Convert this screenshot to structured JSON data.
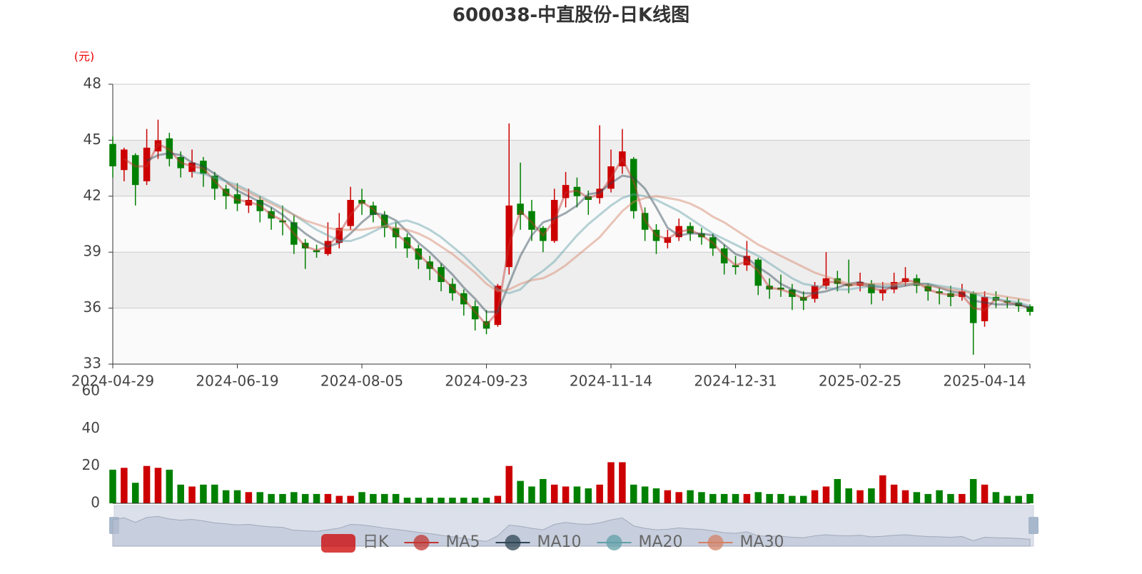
{
  "chart_data": {
    "type": "candlestick",
    "title": "600038-中直股份-日K线图",
    "y_unit": "(元)",
    "categories": [
      "2024-04-29",
      null,
      null,
      null,
      null,
      null,
      null,
      null,
      null,
      null,
      null,
      "2024-06-19",
      null,
      null,
      null,
      null,
      null,
      null,
      null,
      null,
      null,
      null,
      "2024-08-05",
      null,
      null,
      null,
      null,
      null,
      null,
      null,
      null,
      null,
      null,
      "2024-09-23",
      null,
      null,
      null,
      null,
      null,
      null,
      null,
      null,
      null,
      null,
      "2024-11-14",
      null,
      null,
      null,
      null,
      null,
      null,
      null,
      null,
      null,
      null,
      "2024-12-31",
      null,
      null,
      null,
      null,
      null,
      null,
      null,
      null,
      null,
      null,
      "2025-02-25",
      null,
      null,
      null,
      null,
      null,
      null,
      null,
      null,
      null,
      null,
      "2025-04-14",
      null,
      null,
      null,
      null
    ],
    "ylim": [
      33,
      48
    ],
    "yticks": [
      33,
      36,
      39,
      42,
      45,
      48
    ],
    "grid": true,
    "legend_position": "bottom",
    "up_color": "#cc0000",
    "down_color": "#008000",
    "series": [
      {
        "name": "日K",
        "type": "candlestick",
        "color": "#c23531",
        "values": [
          [
            44.8,
            43.6,
            43.0,
            45.2
          ],
          [
            43.4,
            44.5,
            42.8,
            44.6
          ],
          [
            44.2,
            42.6,
            41.5,
            44.3
          ],
          [
            42.8,
            44.6,
            42.6,
            45.6
          ],
          [
            44.4,
            45.0,
            44.0,
            46.1
          ],
          [
            45.1,
            44.0,
            43.6,
            45.4
          ],
          [
            44.1,
            43.5,
            43.0,
            44.4
          ],
          [
            43.3,
            43.8,
            43.0,
            44.5
          ],
          [
            43.9,
            43.2,
            42.5,
            44.1
          ],
          [
            43.1,
            42.4,
            41.8,
            43.3
          ],
          [
            42.4,
            42.0,
            41.3,
            42.6
          ],
          [
            42.1,
            41.6,
            41.2,
            42.7
          ],
          [
            41.5,
            41.8,
            41.1,
            42.4
          ],
          [
            41.8,
            41.2,
            40.6,
            42.0
          ],
          [
            41.2,
            40.8,
            40.2,
            41.4
          ],
          [
            40.7,
            40.6,
            39.9,
            41.5
          ],
          [
            40.6,
            39.4,
            38.9,
            41.0
          ],
          [
            39.5,
            39.2,
            38.1,
            39.7
          ],
          [
            39.1,
            39.0,
            38.7,
            39.4
          ],
          [
            38.9,
            39.6,
            38.8,
            40.6
          ],
          [
            39.5,
            40.3,
            39.2,
            41.1
          ],
          [
            40.4,
            41.8,
            40.2,
            42.5
          ],
          [
            41.8,
            41.6,
            41.0,
            42.4
          ],
          [
            41.5,
            41.0,
            40.6,
            41.7
          ],
          [
            41.0,
            40.3,
            39.8,
            41.2
          ],
          [
            40.3,
            39.8,
            39.2,
            40.6
          ],
          [
            39.8,
            39.2,
            38.7,
            40.0
          ],
          [
            39.2,
            38.6,
            38.1,
            39.4
          ],
          [
            38.5,
            38.1,
            37.5,
            38.8
          ],
          [
            38.2,
            37.4,
            36.9,
            38.4
          ],
          [
            37.3,
            36.8,
            36.4,
            37.6
          ],
          [
            36.8,
            36.2,
            35.6,
            37.0
          ],
          [
            36.1,
            35.4,
            34.8,
            36.4
          ],
          [
            35.3,
            34.9,
            34.6,
            35.9
          ],
          [
            35.1,
            37.2,
            35.0,
            37.3
          ],
          [
            38.2,
            41.5,
            37.8,
            45.9
          ],
          [
            41.6,
            41.0,
            40.2,
            43.8
          ],
          [
            41.2,
            40.2,
            39.6,
            41.8
          ],
          [
            40.3,
            39.6,
            39.0,
            40.4
          ],
          [
            39.6,
            41.8,
            39.5,
            42.4
          ],
          [
            41.9,
            42.6,
            41.4,
            43.3
          ],
          [
            42.5,
            42.0,
            41.4,
            43.0
          ],
          [
            42.0,
            41.8,
            41.0,
            42.3
          ],
          [
            41.9,
            42.4,
            41.6,
            45.8
          ],
          [
            42.4,
            43.6,
            42.2,
            44.5
          ],
          [
            43.6,
            44.4,
            43.2,
            45.6
          ],
          [
            44.0,
            41.2,
            40.8,
            44.1
          ],
          [
            41.1,
            40.2,
            39.6,
            41.4
          ],
          [
            40.2,
            39.6,
            38.9,
            40.5
          ],
          [
            39.5,
            39.8,
            39.2,
            40.2
          ],
          [
            39.8,
            40.4,
            39.6,
            40.8
          ],
          [
            40.4,
            40.0,
            39.6,
            40.6
          ],
          [
            40.0,
            39.8,
            39.4,
            40.3
          ],
          [
            39.8,
            39.2,
            38.8,
            40.0
          ],
          [
            39.2,
            38.4,
            37.8,
            39.4
          ],
          [
            38.3,
            38.2,
            37.8,
            38.8
          ],
          [
            38.3,
            38.8,
            38.0,
            39.6
          ],
          [
            38.6,
            37.2,
            36.7,
            38.7
          ],
          [
            37.2,
            37.0,
            36.5,
            37.6
          ],
          [
            37.1,
            37.0,
            36.6,
            37.8
          ],
          [
            37.0,
            36.6,
            35.9,
            37.3
          ],
          [
            36.6,
            36.4,
            35.9,
            36.9
          ],
          [
            36.5,
            37.2,
            36.3,
            37.4
          ],
          [
            37.2,
            37.6,
            37.0,
            39.0
          ],
          [
            37.6,
            37.3,
            36.9,
            38.0
          ],
          [
            37.3,
            37.2,
            36.8,
            38.6
          ],
          [
            37.2,
            37.4,
            36.9,
            37.9
          ],
          [
            37.3,
            36.8,
            36.2,
            37.5
          ],
          [
            36.8,
            37.0,
            36.4,
            37.4
          ],
          [
            37.0,
            37.4,
            36.8,
            37.9
          ],
          [
            37.4,
            37.6,
            37.2,
            38.2
          ],
          [
            37.6,
            37.2,
            36.8,
            37.8
          ],
          [
            37.2,
            36.9,
            36.4,
            37.3
          ],
          [
            36.9,
            36.8,
            36.2,
            37.1
          ],
          [
            36.8,
            36.6,
            36.1,
            37.2
          ],
          [
            36.6,
            36.9,
            36.4,
            37.3
          ],
          [
            36.8,
            35.2,
            33.5,
            36.9
          ],
          [
            35.3,
            36.6,
            35.0,
            36.9
          ],
          [
            36.6,
            36.4,
            36.0,
            36.9
          ],
          [
            36.4,
            36.3,
            36.0,
            36.6
          ],
          [
            36.3,
            36.1,
            35.8,
            36.5
          ],
          [
            36.1,
            35.8,
            35.6,
            36.2
          ]
        ]
      },
      {
        "name": "MA5",
        "type": "line",
        "color": "#c23531",
        "values": [
          null,
          44.0,
          43.6,
          43.6,
          44.8,
          44.5,
          43.8,
          43.6,
          43.5,
          42.8,
          42.2,
          41.8,
          41.7,
          41.5,
          41.0,
          40.7,
          40.0,
          39.3,
          39.1,
          39.3,
          40.0,
          41.0,
          41.7,
          41.3,
          40.6,
          40.0,
          39.5,
          38.9,
          38.3,
          37.7,
          37.1,
          36.5,
          35.8,
          35.1,
          35.8,
          39.4,
          41.2,
          40.6,
          39.9,
          40.7,
          42.2,
          42.3,
          41.9,
          42.1,
          43.0,
          44.0,
          42.8,
          40.7,
          39.9,
          39.7,
          40.1,
          40.2,
          39.9,
          39.5,
          38.8,
          38.3,
          38.5,
          38.0,
          37.1,
          37.0,
          36.8,
          36.5,
          36.8,
          37.4,
          37.4,
          37.2,
          37.3,
          37.1,
          36.9,
          37.2,
          37.5,
          37.4,
          37.0,
          36.8,
          36.7,
          36.7,
          36.0,
          35.9,
          36.5,
          36.3,
          36.2,
          36.0
        ]
      },
      {
        "name": "MA10",
        "type": "line",
        "color": "#2f4554",
        "values": [
          null,
          null,
          null,
          43.9,
          44.2,
          44.3,
          44.2,
          43.8,
          43.6,
          43.2,
          42.8,
          42.3,
          42.0,
          41.7,
          41.4,
          41.0,
          40.5,
          40.0,
          39.6,
          39.3,
          39.5,
          40.0,
          40.6,
          41.1,
          41.0,
          40.7,
          40.1,
          39.5,
          39.0,
          38.4,
          37.8,
          37.1,
          36.5,
          35.8,
          35.8,
          37.3,
          38.8,
          39.9,
          40.6,
          40.8,
          41.1,
          41.5,
          42.1,
          42.2,
          42.7,
          43.1,
          43.0,
          42.4,
          41.4,
          40.3,
          39.9,
          40.0,
          40.0,
          39.9,
          39.4,
          38.9,
          38.7,
          38.2,
          37.8,
          37.3,
          37.0,
          36.8,
          36.8,
          36.9,
          37.1,
          37.3,
          37.4,
          37.2,
          37.1,
          37.1,
          37.2,
          37.3,
          37.3,
          37.1,
          36.9,
          36.8,
          36.4,
          36.3,
          36.2,
          36.2,
          36.2,
          36.0
        ]
      },
      {
        "name": "MA20",
        "type": "line",
        "color": "#61a0a8",
        "values": [
          null,
          null,
          null,
          null,
          null,
          null,
          null,
          43.3,
          43.2,
          43.0,
          42.8,
          42.6,
          42.3,
          42.0,
          41.7,
          41.4,
          41.0,
          40.6,
          40.2,
          39.9,
          39.6,
          39.6,
          39.8,
          40.1,
          40.4,
          40.6,
          40.7,
          40.5,
          40.2,
          39.8,
          39.3,
          38.8,
          38.2,
          37.6,
          37.0,
          36.8,
          37.0,
          37.6,
          38.0,
          38.5,
          39.2,
          39.9,
          40.5,
          41.0,
          41.5,
          41.9,
          42.1,
          42.0,
          41.8,
          41.5,
          41.2,
          40.8,
          40.4,
          40.0,
          39.7,
          39.4,
          39.1,
          38.8,
          38.4,
          38.0,
          37.6,
          37.3,
          37.2,
          37.1,
          37.0,
          37.0,
          37.1,
          37.2,
          37.2,
          37.2,
          37.3,
          37.3,
          37.3,
          37.2,
          37.1,
          37.0,
          36.8,
          36.6,
          36.5,
          36.4,
          36.3,
          36.1
        ]
      },
      {
        "name": "MA30",
        "type": "line",
        "color": "#d48265",
        "values": [
          null,
          null,
          null,
          null,
          null,
          null,
          null,
          null,
          null,
          null,
          42.7,
          42.5,
          42.2,
          41.9,
          41.6,
          41.3,
          41.0,
          40.7,
          40.5,
          40.3,
          40.2,
          40.2,
          40.2,
          40.3,
          40.4,
          40.3,
          40.2,
          40.0,
          39.7,
          39.3,
          38.9,
          38.4,
          37.9,
          37.3,
          36.9,
          37.0,
          37.3,
          37.5,
          37.6,
          37.9,
          38.3,
          38.8,
          39.3,
          39.8,
          40.5,
          41.2,
          41.7,
          41.9,
          42.0,
          41.9,
          41.8,
          41.6,
          41.3,
          40.9,
          40.6,
          40.2,
          39.8,
          39.4,
          39.1,
          38.8,
          38.5,
          38.2,
          37.9,
          37.7,
          37.5,
          37.3,
          37.3,
          37.3,
          37.3,
          37.3,
          37.3,
          37.3,
          37.2,
          37.1,
          37.0,
          36.9,
          36.8,
          36.8,
          36.7,
          36.6,
          36.5,
          36.4
        ]
      }
    ],
    "volume": {
      "ylim": [
        0,
        60
      ],
      "yticks": [
        0,
        20,
        40,
        60
      ],
      "values": [
        18,
        19,
        11,
        20,
        19,
        18,
        10,
        9,
        10,
        10,
        7,
        7,
        6,
        6,
        5,
        5,
        6,
        5,
        5,
        5,
        4,
        4,
        6,
        5,
        5,
        5,
        3,
        3,
        3,
        3,
        3,
        3,
        3,
        3,
        4,
        20,
        12,
        9,
        13,
        10,
        9,
        9,
        8,
        10,
        22,
        22,
        10,
        9,
        8,
        7,
        6,
        7,
        6,
        5,
        5,
        5,
        5,
        6,
        5,
        5,
        4,
        4,
        7,
        9,
        13,
        8,
        7,
        8,
        15,
        10,
        7,
        6,
        5,
        7,
        5,
        5,
        13,
        10,
        6,
        4,
        4,
        5
      ]
    }
  }
}
